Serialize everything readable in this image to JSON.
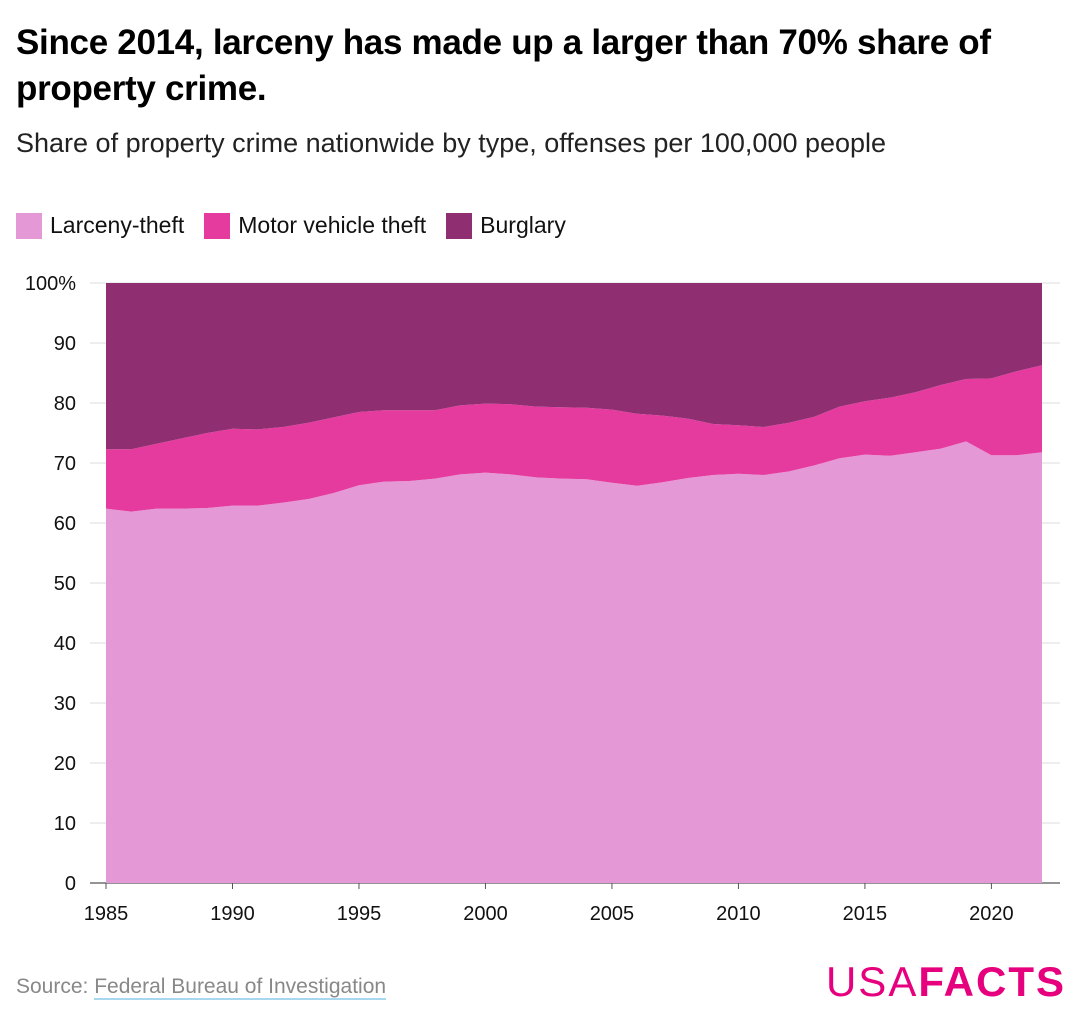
{
  "title": "Since 2014, larceny has made up a larger than 70% share of property crime.",
  "subtitle": "Share of property crime nationwide by type, offenses per 100,000 people",
  "legend": [
    {
      "label": "Larceny-theft",
      "color": "#e498d6"
    },
    {
      "label": "Motor vehicle theft",
      "color": "#e63b9e"
    },
    {
      "label": "Burglary",
      "color": "#902e72"
    }
  ],
  "source": {
    "prefix": "Source: ",
    "link_text": "Federal Bureau of Investigation"
  },
  "logo": {
    "usa": "USA",
    "facts": "FACTS"
  },
  "chart_data": {
    "type": "area",
    "stacked": true,
    "x": [
      1985,
      1986,
      1987,
      1988,
      1989,
      1990,
      1991,
      1992,
      1993,
      1994,
      1995,
      1996,
      1997,
      1998,
      1999,
      2000,
      2001,
      2002,
      2003,
      2004,
      2005,
      2006,
      2007,
      2008,
      2009,
      2010,
      2011,
      2012,
      2013,
      2014,
      2015,
      2016,
      2017,
      2018,
      2019,
      2020,
      2021,
      2022
    ],
    "series": [
      {
        "name": "Larceny-theft",
        "color": "#e498d6",
        "values": [
          62.4,
          61.9,
          62.4,
          62.4,
          62.5,
          62.9,
          62.9,
          63.4,
          64.0,
          65.0,
          66.3,
          66.9,
          67.0,
          67.4,
          68.1,
          68.4,
          68.1,
          67.6,
          67.4,
          67.3,
          66.7,
          66.2,
          66.8,
          67.5,
          68.0,
          68.2,
          68.0,
          68.6,
          69.6,
          70.8,
          71.4,
          71.2,
          71.8,
          72.4,
          73.6,
          71.3,
          71.3,
          71.8
        ]
      },
      {
        "name": "Motor vehicle theft",
        "color": "#e63b9e",
        "values": [
          9.9,
          10.4,
          10.8,
          11.7,
          12.5,
          12.8,
          12.7,
          12.6,
          12.7,
          12.6,
          12.2,
          11.9,
          11.8,
          11.4,
          11.5,
          11.5,
          11.7,
          11.8,
          11.9,
          11.9,
          12.2,
          12.0,
          11.1,
          9.9,
          8.5,
          8.1,
          8.0,
          8.1,
          8.1,
          8.6,
          8.9,
          9.7,
          10.0,
          10.6,
          10.4,
          12.8,
          14.0,
          14.5
        ]
      },
      {
        "name": "Burglary",
        "color": "#902e72",
        "values": [
          27.7,
          27.7,
          26.8,
          25.9,
          25.0,
          24.3,
          24.4,
          24.0,
          23.3,
          22.4,
          21.5,
          21.2,
          21.2,
          21.2,
          20.4,
          20.1,
          20.2,
          20.6,
          20.7,
          20.8,
          21.1,
          21.8,
          22.1,
          22.6,
          23.5,
          23.7,
          24.0,
          23.3,
          22.3,
          20.6,
          19.7,
          19.1,
          18.2,
          17.0,
          16.0,
          15.9,
          14.7,
          13.7
        ]
      }
    ],
    "ylim": [
      0,
      100
    ],
    "y_ticks": [
      0,
      10,
      20,
      30,
      40,
      50,
      60,
      70,
      80,
      90,
      100
    ],
    "y_tick_labels": [
      "0",
      "10",
      "20",
      "30",
      "40",
      "50",
      "60",
      "70",
      "80",
      "90",
      "100%"
    ],
    "x_ticks": [
      1985,
      1990,
      1995,
      2000,
      2005,
      2010,
      2015,
      2020
    ],
    "x_tick_labels": [
      "1985",
      "1990",
      "1995",
      "2000",
      "2005",
      "2010",
      "2015",
      "2020"
    ],
    "grid": true,
    "legend_position": "top-left"
  }
}
